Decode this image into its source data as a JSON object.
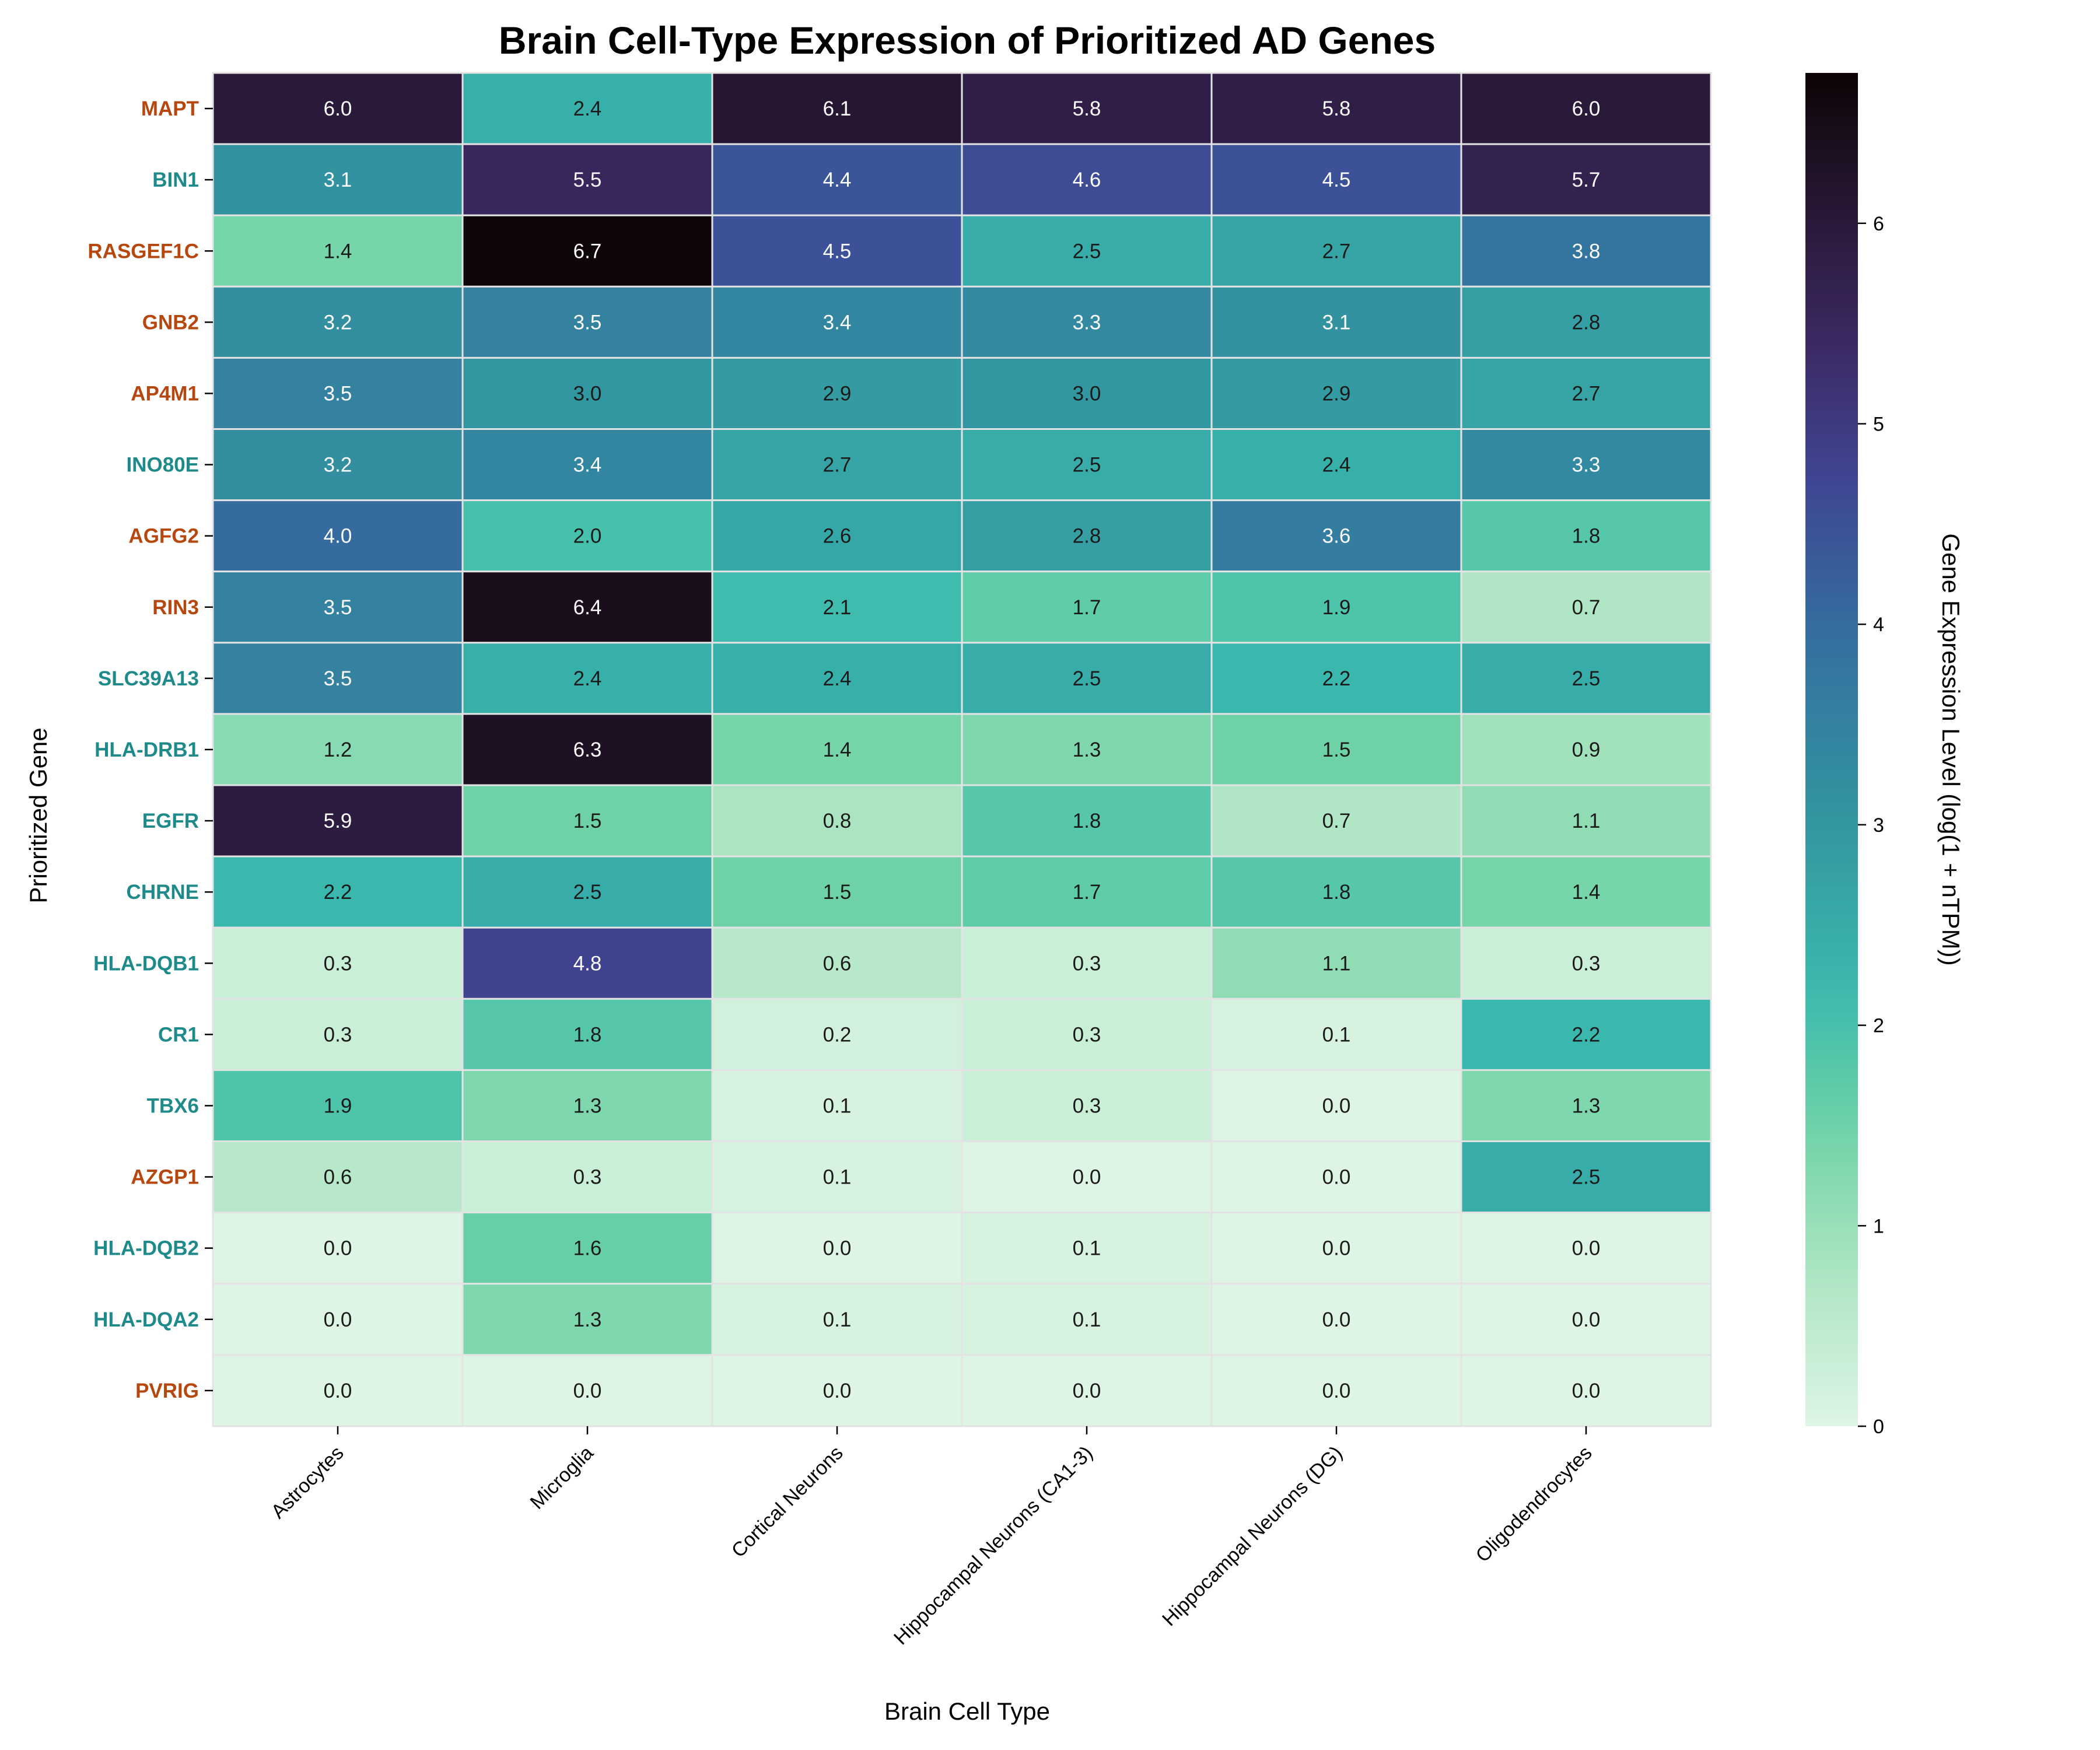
{
  "chart_data": {
    "type": "heatmap",
    "title": "Brain Cell-Type Expression of Prioritized AD Genes",
    "xlabel": "Brain Cell Type",
    "ylabel": "Prioritized Gene",
    "colorbar_label": "Gene Expression Level (log(1 + nTPM))",
    "colorbar_ticks": [
      "0",
      "1",
      "2",
      "3",
      "4",
      "5",
      "6"
    ],
    "colorbar_range": [
      0,
      6.75
    ],
    "colormap": "mako_r",
    "cell_types": [
      "Astrocytes",
      "Microglia",
      "Cortical Neurons",
      "Hippocampal Neurons (CA1-3)",
      "Hippocampal Neurons (DG)",
      "Oligodendrocytes"
    ],
    "genes": [
      {
        "name": "MAPT",
        "label_color": "#b5470f"
      },
      {
        "name": "BIN1",
        "label_color": "#1f8a8a"
      },
      {
        "name": "RASGEF1C",
        "label_color": "#b5470f"
      },
      {
        "name": "GNB2",
        "label_color": "#b5470f"
      },
      {
        "name": "AP4M1",
        "label_color": "#b5470f"
      },
      {
        "name": "INO80E",
        "label_color": "#1f8a8a"
      },
      {
        "name": "AGFG2",
        "label_color": "#b5470f"
      },
      {
        "name": "RIN3",
        "label_color": "#b5470f"
      },
      {
        "name": "SLC39A13",
        "label_color": "#1f8a8a"
      },
      {
        "name": "HLA-DRB1",
        "label_color": "#1f8a8a"
      },
      {
        "name": "EGFR",
        "label_color": "#1f8a8a"
      },
      {
        "name": "CHRNE",
        "label_color": "#1f8a8a"
      },
      {
        "name": "HLA-DQB1",
        "label_color": "#1f8a8a"
      },
      {
        "name": "CR1",
        "label_color": "#1f8a8a"
      },
      {
        "name": "TBX6",
        "label_color": "#1f8a8a"
      },
      {
        "name": "AZGP1",
        "label_color": "#b5470f"
      },
      {
        "name": "HLA-DQB2",
        "label_color": "#1f8a8a"
      },
      {
        "name": "HLA-DQA2",
        "label_color": "#1f8a8a"
      },
      {
        "name": "PVRIG",
        "label_color": "#b5470f"
      }
    ],
    "values": [
      [
        6.0,
        2.4,
        6.1,
        5.8,
        5.8,
        6.0
      ],
      [
        3.1,
        5.5,
        4.4,
        4.6,
        4.5,
        5.7
      ],
      [
        1.4,
        6.7,
        4.5,
        2.5,
        2.7,
        3.8
      ],
      [
        3.2,
        3.5,
        3.4,
        3.3,
        3.1,
        2.8
      ],
      [
        3.5,
        3.0,
        2.9,
        3.0,
        2.9,
        2.7
      ],
      [
        3.2,
        3.4,
        2.7,
        2.5,
        2.4,
        3.3
      ],
      [
        4.0,
        2.0,
        2.6,
        2.8,
        3.6,
        1.8
      ],
      [
        3.5,
        6.4,
        2.1,
        1.7,
        1.9,
        0.7
      ],
      [
        3.5,
        2.4,
        2.4,
        2.5,
        2.2,
        2.5
      ],
      [
        1.2,
        6.3,
        1.4,
        1.3,
        1.5,
        0.9
      ],
      [
        5.9,
        1.5,
        0.8,
        1.8,
        0.7,
        1.1
      ],
      [
        2.2,
        2.5,
        1.5,
        1.7,
        1.8,
        1.4
      ],
      [
        0.3,
        4.8,
        0.6,
        0.3,
        1.1,
        0.3
      ],
      [
        0.3,
        1.8,
        0.2,
        0.3,
        0.1,
        2.2
      ],
      [
        1.9,
        1.3,
        0.1,
        0.3,
        0.0,
        1.3
      ],
      [
        0.6,
        0.3,
        0.1,
        0.0,
        0.0,
        2.5
      ],
      [
        0.0,
        1.6,
        0.0,
        0.1,
        0.0,
        0.0
      ],
      [
        0.0,
        1.3,
        0.1,
        0.1,
        0.0,
        0.0
      ],
      [
        0.0,
        0.0,
        0.0,
        0.0,
        0.0,
        0.0
      ]
    ]
  }
}
